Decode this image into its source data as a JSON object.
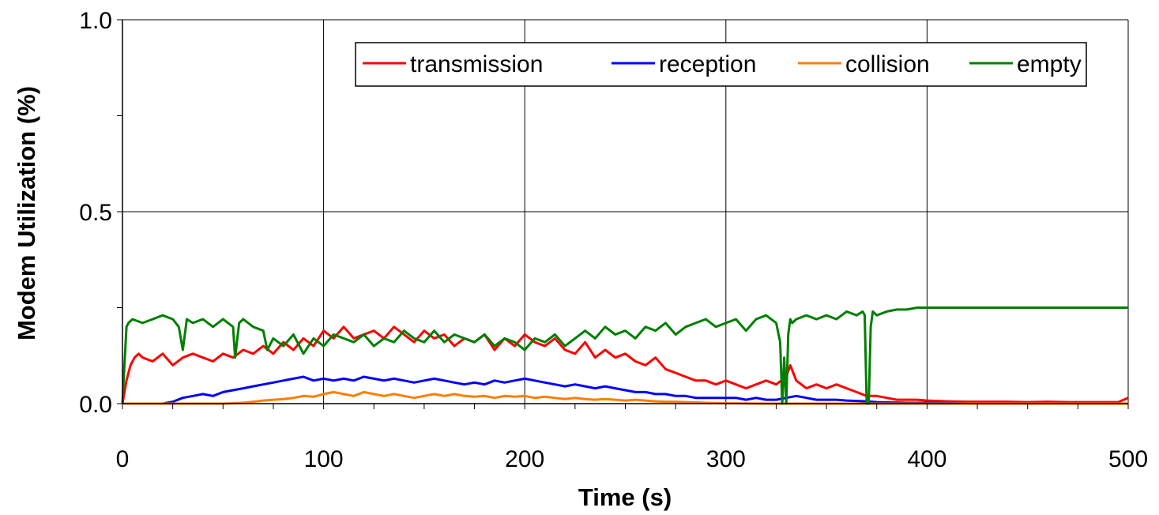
{
  "chart_data": {
    "type": "line",
    "title": "",
    "xlabel": "Time (s)",
    "ylabel": "Modem Utilization (%)",
    "xlim": [
      0,
      500
    ],
    "ylim": [
      0,
      1.0
    ],
    "x_ticks": [
      "0",
      "100",
      "200",
      "300",
      "400",
      "500"
    ],
    "y_ticks": [
      "0.0",
      "0.5",
      "1.0"
    ],
    "grid": true,
    "legend_position": "top-right",
    "series": [
      {
        "name": "transmission",
        "color": "#ff0000",
        "x": [
          0,
          2,
          4,
          6,
          8,
          10,
          15,
          20,
          25,
          30,
          35,
          40,
          45,
          50,
          55,
          60,
          65,
          70,
          75,
          80,
          85,
          90,
          95,
          100,
          105,
          110,
          115,
          120,
          125,
          130,
          135,
          140,
          145,
          150,
          155,
          160,
          165,
          170,
          175,
          180,
          185,
          190,
          195,
          200,
          205,
          210,
          215,
          220,
          225,
          230,
          235,
          240,
          245,
          250,
          255,
          260,
          265,
          270,
          275,
          280,
          285,
          290,
          295,
          300,
          305,
          310,
          315,
          320,
          325,
          330,
          332,
          335,
          340,
          345,
          350,
          355,
          360,
          365,
          370,
          375,
          380,
          385,
          390,
          395,
          400,
          410,
          420,
          430,
          440,
          450,
          460,
          470,
          480,
          490,
          495,
          500
        ],
        "y": [
          0.0,
          0.06,
          0.1,
          0.12,
          0.13,
          0.12,
          0.11,
          0.13,
          0.1,
          0.12,
          0.13,
          0.12,
          0.11,
          0.13,
          0.12,
          0.14,
          0.13,
          0.15,
          0.13,
          0.16,
          0.14,
          0.17,
          0.15,
          0.19,
          0.17,
          0.2,
          0.17,
          0.18,
          0.19,
          0.17,
          0.2,
          0.18,
          0.16,
          0.19,
          0.17,
          0.18,
          0.15,
          0.17,
          0.16,
          0.18,
          0.14,
          0.17,
          0.15,
          0.18,
          0.16,
          0.15,
          0.17,
          0.14,
          0.13,
          0.16,
          0.12,
          0.14,
          0.12,
          0.13,
          0.11,
          0.1,
          0.12,
          0.09,
          0.08,
          0.07,
          0.06,
          0.06,
          0.05,
          0.06,
          0.05,
          0.04,
          0.05,
          0.06,
          0.05,
          0.07,
          0.1,
          0.06,
          0.04,
          0.05,
          0.04,
          0.05,
          0.04,
          0.03,
          0.02,
          0.02,
          0.015,
          0.01,
          0.01,
          0.01,
          0.008,
          0.006,
          0.005,
          0.005,
          0.005,
          0.004,
          0.005,
          0.004,
          0.004,
          0.004,
          0.004,
          0.015
        ]
      },
      {
        "name": "reception",
        "color": "#0000ff",
        "x": [
          0,
          5,
          10,
          15,
          20,
          25,
          30,
          35,
          40,
          45,
          50,
          55,
          60,
          65,
          70,
          75,
          80,
          85,
          90,
          95,
          100,
          105,
          110,
          115,
          120,
          125,
          130,
          135,
          140,
          145,
          150,
          155,
          160,
          165,
          170,
          175,
          180,
          185,
          190,
          195,
          200,
          205,
          210,
          215,
          220,
          225,
          230,
          235,
          240,
          245,
          250,
          255,
          260,
          265,
          270,
          275,
          280,
          285,
          290,
          295,
          300,
          305,
          310,
          315,
          320,
          325,
          330,
          335,
          340,
          345,
          350,
          355,
          360,
          365,
          370,
          375,
          380,
          390,
          400,
          420,
          440,
          460,
          480,
          500
        ],
        "y": [
          0.0,
          0.0,
          0.0,
          0.0,
          0.0,
          0.005,
          0.015,
          0.02,
          0.025,
          0.02,
          0.03,
          0.035,
          0.04,
          0.045,
          0.05,
          0.055,
          0.06,
          0.065,
          0.07,
          0.06,
          0.065,
          0.06,
          0.065,
          0.06,
          0.07,
          0.065,
          0.06,
          0.065,
          0.06,
          0.055,
          0.06,
          0.065,
          0.06,
          0.055,
          0.05,
          0.055,
          0.05,
          0.06,
          0.055,
          0.06,
          0.065,
          0.06,
          0.055,
          0.05,
          0.045,
          0.05,
          0.045,
          0.04,
          0.045,
          0.04,
          0.035,
          0.03,
          0.03,
          0.025,
          0.025,
          0.02,
          0.02,
          0.015,
          0.015,
          0.015,
          0.015,
          0.015,
          0.01,
          0.015,
          0.01,
          0.01,
          0.015,
          0.02,
          0.015,
          0.01,
          0.01,
          0.01,
          0.008,
          0.007,
          0.006,
          0.004,
          0.003,
          0.002,
          0.002,
          0.0,
          0.0,
          0.0,
          0.0,
          0.0
        ]
      },
      {
        "name": "collision",
        "color": "#ff7f00",
        "x": [
          0,
          10,
          20,
          30,
          40,
          50,
          60,
          65,
          70,
          75,
          80,
          85,
          90,
          95,
          100,
          105,
          110,
          115,
          120,
          125,
          130,
          135,
          140,
          145,
          150,
          155,
          160,
          165,
          170,
          175,
          180,
          185,
          190,
          195,
          200,
          205,
          210,
          215,
          220,
          225,
          230,
          235,
          240,
          245,
          250,
          255,
          260,
          265,
          270,
          275,
          280,
          285,
          290,
          300,
          320,
          340,
          360,
          380,
          400,
          450,
          500
        ],
        "y": [
          0.0,
          0.0,
          0.0,
          0.0,
          0.0,
          0.0,
          0.002,
          0.005,
          0.008,
          0.01,
          0.012,
          0.015,
          0.02,
          0.018,
          0.025,
          0.03,
          0.025,
          0.02,
          0.03,
          0.025,
          0.02,
          0.025,
          0.02,
          0.015,
          0.02,
          0.025,
          0.02,
          0.025,
          0.02,
          0.018,
          0.02,
          0.015,
          0.02,
          0.018,
          0.02,
          0.015,
          0.018,
          0.015,
          0.012,
          0.015,
          0.012,
          0.01,
          0.012,
          0.01,
          0.008,
          0.01,
          0.008,
          0.006,
          0.005,
          0.005,
          0.004,
          0.003,
          0.002,
          0.001,
          0.0,
          0.0,
          0.0,
          0.0,
          0.0,
          0.0,
          0.0
        ]
      },
      {
        "name": "empty",
        "color": "#007f00",
        "x": [
          0,
          1,
          2,
          3,
          5,
          10,
          15,
          20,
          25,
          28,
          30,
          32,
          35,
          40,
          45,
          50,
          55,
          56,
          58,
          60,
          65,
          70,
          72,
          75,
          80,
          85,
          90,
          95,
          100,
          105,
          110,
          115,
          120,
          125,
          130,
          135,
          140,
          145,
          150,
          155,
          160,
          165,
          170,
          175,
          180,
          185,
          190,
          195,
          200,
          205,
          210,
          215,
          220,
          225,
          230,
          235,
          240,
          245,
          250,
          255,
          260,
          265,
          270,
          275,
          280,
          285,
          290,
          295,
          300,
          305,
          310,
          315,
          320,
          325,
          327,
          328,
          329,
          330,
          331,
          332,
          333,
          335,
          340,
          345,
          350,
          355,
          360,
          365,
          368,
          369,
          370,
          371,
          372,
          373,
          375,
          380,
          385,
          390,
          395,
          400,
          420,
          440,
          460,
          480,
          500
        ],
        "y": [
          0.0,
          0.1,
          0.2,
          0.21,
          0.22,
          0.21,
          0.22,
          0.23,
          0.22,
          0.2,
          0.14,
          0.22,
          0.21,
          0.22,
          0.2,
          0.22,
          0.2,
          0.12,
          0.21,
          0.22,
          0.2,
          0.19,
          0.14,
          0.17,
          0.15,
          0.18,
          0.13,
          0.17,
          0.15,
          0.18,
          0.17,
          0.16,
          0.18,
          0.15,
          0.17,
          0.16,
          0.19,
          0.17,
          0.16,
          0.19,
          0.16,
          0.18,
          0.17,
          0.16,
          0.18,
          0.15,
          0.17,
          0.16,
          0.14,
          0.17,
          0.16,
          0.18,
          0.15,
          0.17,
          0.19,
          0.17,
          0.2,
          0.18,
          0.19,
          0.17,
          0.2,
          0.19,
          0.21,
          0.18,
          0.2,
          0.21,
          0.22,
          0.2,
          0.21,
          0.22,
          0.19,
          0.22,
          0.23,
          0.21,
          0.16,
          0.0,
          0.12,
          0.0,
          0.18,
          0.22,
          0.21,
          0.22,
          0.23,
          0.22,
          0.23,
          0.22,
          0.24,
          0.23,
          0.24,
          0.23,
          0.0,
          0.0,
          0.2,
          0.24,
          0.23,
          0.24,
          0.245,
          0.245,
          0.25,
          0.25,
          0.25,
          0.25,
          0.25,
          0.25,
          0.25
        ]
      }
    ]
  }
}
